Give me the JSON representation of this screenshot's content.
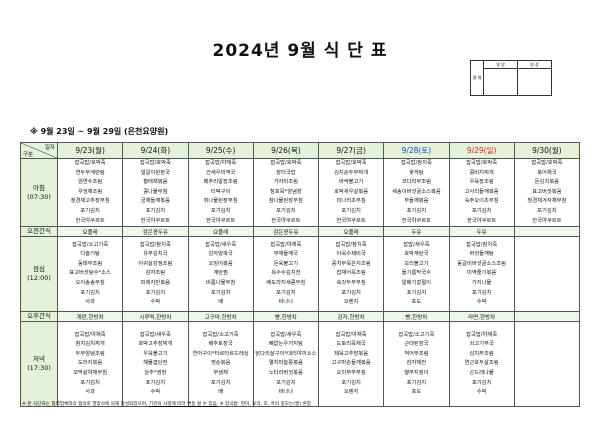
{
  "title": "2024년 9월 식 단 표",
  "approval": {
    "label": "결 재",
    "columns": [
      "영 양",
      "원 장"
    ]
  },
  "period": "※ 9월 23일 ~ 9월 29일 (은천요양원)",
  "table": {
    "corner_top": "일자",
    "corner_bottom": "구분",
    "colors": {
      "saturday": "#1f3fd1",
      "sunday": "#e02020",
      "header_bg": "#e3f2d9"
    },
    "days": [
      {
        "label": "9/23(월)",
        "type": "weekday"
      },
      {
        "label": "9/24(화)",
        "type": "weekday"
      },
      {
        "label": "9/25(수)",
        "type": "weekday"
      },
      {
        "label": "9/26(목)",
        "type": "weekday"
      },
      {
        "label": "9/27(금)",
        "type": "weekday"
      },
      {
        "label": "9/28(토)",
        "type": "saturday"
      },
      {
        "label": "9/29(일)",
        "type": "sunday"
      },
      {
        "label": "9/30(월)",
        "type": "weekday"
      }
    ],
    "rows": [
      {
        "kind": "meal",
        "label": "아침",
        "time": "(07:30)",
        "cells": [
          [
            "잡곡밥/호박죽",
            "연두부계란탕",
            "임연수조림",
            "우엉채조림",
            "청경채고추장무침",
            "포기김치",
            "한국야쿠르트"
          ],
          [
            "잡곡밥/호박죽",
            "얼갈이된장국",
            "황태채볶음",
            "콩나물무침",
            "궁채들깨볶음",
            "포기김치",
            "한국야쿠르트"
          ],
          [
            "잡곡밥/야채죽",
            "건새우미역국",
            "메추리알장조림",
            "티떡구이",
            "취나물된장무침",
            "포기김치",
            "한국야쿠르트"
          ],
          [
            "잡곡밥/호박죽",
            "장터국밥",
            "가자미조림",
            "청포묵*양념장",
            "참나물된장무침",
            "포기김치",
            "한국야쿠르트"
          ],
          [
            "잡곡밥/호박죽",
            "김치순두부찌개",
            "바싹불고기",
            "호박새우살볶음",
            "미나리초무침",
            "포기김치",
            "한국야쿠르트"
          ],
          [
            "잡곡밥/참치죽",
            "꽃게탕",
            "코다리무조림",
            "새송이버섯굴소스볶음",
            "무들깨볶음",
            "포기김치",
            "한국야쿠르트"
          ],
          [
            "잡곡밥/호박죽",
            "콩비지찌개",
            "우육장조림",
            "고사리들깨볶음",
            "숙주오이초무침",
            "포기김치",
            "한국야쿠르트"
          ],
          [
            "잡곡밥/호박죽",
            "북어채국",
            "돈김치볶음",
            "표고버섯볶음",
            "청경채겨자채무침",
            "포기김치",
            "한국야쿠르트"
          ]
        ]
      },
      {
        "kind": "snack",
        "label": "오전간식",
        "cells": [
          "요플레",
          "검은콩두유",
          "요플레",
          "검은콩두유",
          "요플레",
          "두유",
          "두유",
          ""
        ]
      },
      {
        "kind": "meal",
        "label": "점심",
        "time": "(12:00)",
        "cells": [
          [
            "잡곡밥/소고기죽",
            "다슬기탕",
            "동태무조림",
            "표고버섯탕수*소스",
            "오이송송무침",
            "포기김치",
            "사과"
          ],
          [
            "잡곡밥/참치죽",
            "유부김치국",
            "아귀살강정조림",
            "감자조림",
            "파래자반볶음",
            "포기김치",
            "수박"
          ],
          [
            "잡곡밥/새우죽",
            "감자양파국",
            "오징어볶음",
            "계란찜",
            "비름나물무침",
            "포기김치",
            "배"
          ],
          [
            "잡곡밥/야채죽",
            "무채들깨국",
            "돈육불고기",
            "옥수수김치전",
            "배도라지새콤무침",
            "포기김치",
            "바나나"
          ],
          [
            "잡곡밥/참치죽",
            "아욱수제비국",
            "꽁치무묵은지조림",
            "잡채어묵조림",
            "쑥갓두부무침",
            "포기김치",
            "오렌지"
          ],
          [
            "잡밥/새우죽",
            "호박계란국",
            "오리불고기",
            "들기름막국수",
            "알배기겉절이",
            "포기김치",
            "포도"
          ],
          [
            "잡곡밥/참치죽",
            "버섯들깨탕",
            "동갈비버섯굴소스조림",
            "미역줄기볶음",
            "가지나물",
            "포기김치",
            "수박"
          ],
          []
        ]
      },
      {
        "kind": "snack",
        "label": "오후간식",
        "cells": [
          "계란,한방차",
          "시루떡,한방차",
          "고구마,한방차",
          "빵,한방차",
          "감자,한방차",
          "빵,한방차",
          "라면,한방차",
          ""
        ]
      },
      {
        "kind": "meal",
        "label": "저녁",
        "time": "(17:30)",
        "cells": [
          [
            "잡곡밥/야채죽",
            "참치김치찌개",
            "두부양념조림",
            "도라지볶음",
            "꼬막살야채무침",
            "포기김치",
            "사과"
          ],
          [
            "잡곡밥/새우죽",
            "호박고추장찌개",
            "우육불고기",
            "해물겹단전",
            "상추*쌈장",
            "포기김치",
            "수박"
          ],
          [
            "잡곡밥/소고기죽",
            "배추토장국",
            "연어구이*타르타르드레싱",
            "깻순볶음",
            "무생채",
            "포기김치",
            "배"
          ],
          [
            "잡곡밥/새우죽",
            "뼈없는우거지탕",
            "닭다리살구이*데리야끼소스",
            "멸치마늘쫑볶음",
            "노타리버섯볶음",
            "포기김치",
            "바나나"
          ],
          [
            "잡곡밥/야채죽",
            "도토리묵채국",
            "제육고추장볶음",
            "고구마순들깨볶음",
            "오이부추무침",
            "포기김치",
            "오렌지"
          ],
          [
            "잡곡밥/소고기죽",
            "근대된장국",
            "적어무조림",
            "감자채전",
            "열무지짐이",
            "포기김치",
            "포도"
          ],
          [
            "잡곡밥/야채죽",
            "쇠고기무국",
            "삼치무조림",
            "연근호두살조림",
            "곤드레나물",
            "포기김치",
            "수박"
          ],
          []
        ]
      }
    ]
  },
  "footnote": {
    "part1": "※ 본 식단표는 협력업체와의 협의로 영양사에 의해 작성되었으며, ",
    "underlined": "기관의 사정에 따라 변동 될 수 있음.",
    "part2": " ※ 잡곡밥: 현미, 보리, 조, 흑미 중모는(쌀) 혼합"
  }
}
